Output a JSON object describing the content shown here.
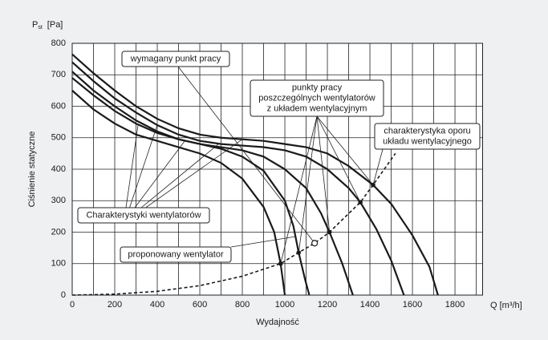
{
  "chart_data": {
    "type": "line",
    "y_unit": {
      "symbol": "P",
      "subscript": "st",
      "unit": "[Pa]"
    },
    "x_unit": "Q [m³/h]",
    "ylabel": "Ciśnienie statyczne",
    "xlabel": "Wydajność",
    "xlim": [
      0,
      1930
    ],
    "ylim": [
      0,
      800
    ],
    "xticks": [
      0,
      200,
      400,
      600,
      800,
      1000,
      1200,
      1400,
      1600,
      1800
    ],
    "x_minor_ticks": [
      100,
      300,
      500,
      700,
      900,
      1100,
      1300,
      1500,
      1700,
      1900
    ],
    "yticks": [
      0,
      100,
      200,
      300,
      400,
      500,
      600,
      700,
      800
    ],
    "grid": true,
    "series": [
      {
        "color": "#1a1a1a",
        "x": [
          0,
          100,
          200,
          300,
          400,
          500,
          600,
          700,
          800,
          900,
          950,
          980,
          1000
        ],
        "values": [
          650,
          590,
          545,
          510,
          490,
          470,
          450,
          420,
          370,
          280,
          200,
          100,
          0
        ]
      },
      {
        "color": "#1a1a1a",
        "x": [
          0,
          100,
          200,
          300,
          400,
          500,
          600,
          700,
          800,
          900,
          1000,
          1040,
          1065,
          1095,
          1115
        ],
        "values": [
          690,
          635,
          585,
          545,
          515,
          495,
          480,
          465,
          440,
          395,
          300,
          220,
          135,
          50,
          0
        ]
      },
      {
        "color": "#1a1a1a",
        "x": [
          0,
          100,
          200,
          300,
          400,
          500,
          600,
          700,
          800,
          900,
          1000,
          1100,
          1170,
          1210,
          1270,
          1320
        ],
        "values": [
          710,
          650,
          600,
          555,
          520,
          495,
          480,
          470,
          460,
          440,
          400,
          340,
          260,
          200,
          100,
          0
        ]
      },
      {
        "color": "#1a1a1a",
        "x": [
          0,
          100,
          200,
          300,
          400,
          500,
          600,
          700,
          800,
          900,
          1000,
          1100,
          1200,
          1300,
          1355,
          1430,
          1500,
          1560
        ],
        "values": [
          740,
          680,
          625,
          580,
          540,
          510,
          490,
          480,
          475,
          470,
          460,
          440,
          400,
          340,
          295,
          210,
          110,
          0
        ]
      },
      {
        "color": "#1a1a1a",
        "x": [
          0,
          100,
          200,
          300,
          400,
          500,
          600,
          700,
          800,
          900,
          1000,
          1100,
          1200,
          1300,
          1415,
          1500,
          1600,
          1680,
          1720
        ],
        "values": [
          765,
          705,
          650,
          600,
          560,
          530,
          510,
          500,
          495,
          490,
          480,
          470,
          450,
          410,
          350,
          290,
          190,
          90,
          0
        ]
      },
      {
        "color": "#1a1a1a",
        "dashed": true,
        "x": [
          0,
          200,
          400,
          600,
          800,
          980,
          1065,
          1140,
          1210,
          1355,
          1415,
          1520
        ],
        "values": [
          0,
          3,
          12,
          30,
          60,
          100,
          135,
          165,
          200,
          295,
          350,
          450
        ]
      }
    ],
    "working_points": {
      "x": [
        980,
        1065,
        1210,
        1355,
        1415
      ],
      "values": [
        100,
        135,
        200,
        295,
        350
      ]
    },
    "required_point": {
      "x": 1140,
      "value": 165
    },
    "annotations": [
      {
        "lines": [
          "wymagany punkt pracy"
        ]
      },
      {
        "lines": [
          "punkty pracy",
          "poszczególnych wentylatorów",
          "z układem wentylacyjnym"
        ]
      },
      {
        "lines": [
          "charakterystyka oporu",
          "układu wentylacyjnego"
        ]
      },
      {
        "lines": [
          "Charakterystyki wentylatorów"
        ]
      },
      {
        "lines": [
          "proponowany wentylator"
        ]
      }
    ]
  }
}
